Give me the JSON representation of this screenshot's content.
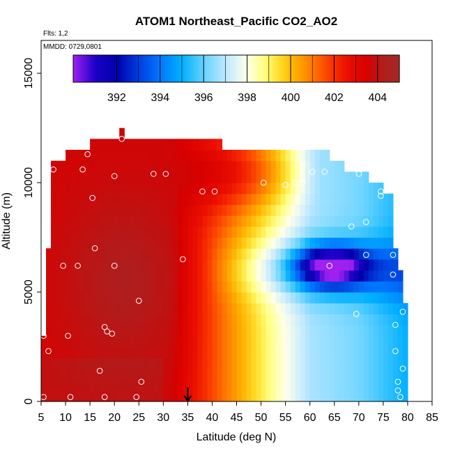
{
  "chart_data": {
    "type": "heatmap",
    "title": "ATOM1 Northeast_Pacific CO2_AO2",
    "notes": {
      "flights": "Flts: 1,2",
      "dates": "MMDD: 0729,0801"
    },
    "xlabel": "Latitude (deg N)",
    "ylabel": "Altitude (m)",
    "xlim": [
      5,
      85
    ],
    "ylim": [
      0,
      16500
    ],
    "x_ticks": [
      5,
      10,
      15,
      20,
      25,
      30,
      35,
      40,
      45,
      50,
      55,
      60,
      65,
      70,
      75,
      80,
      85
    ],
    "y_ticks": [
      0,
      5000,
      10000,
      15000
    ],
    "colorbar": {
      "range": [
        390,
        405
      ],
      "ticks": [
        392,
        394,
        396,
        398,
        400,
        402,
        404
      ],
      "placement": "top"
    },
    "marker": {
      "x": 35,
      "y": 0,
      "shape": "down-arrow"
    },
    "cell_width_deg": 1,
    "cell_height_m": 500,
    "columns": [
      {
        "x0": 5,
        "x1": 6,
        "top": 3000
      },
      {
        "x0": 6,
        "x1": 7,
        "top": 7000
      },
      {
        "x0": 7,
        "x1": 10,
        "top": 11000
      },
      {
        "x0": 10,
        "x1": 15,
        "top": 11500
      },
      {
        "x0": 15,
        "x1": 21,
        "top": 12000
      },
      {
        "x0": 21,
        "x1": 22,
        "top": 12500
      },
      {
        "x0": 22,
        "x1": 42,
        "top": 12000
      },
      {
        "x0": 42,
        "x1": 62,
        "top": 11500
      },
      {
        "x0": 62,
        "x1": 64,
        "top": 11500
      },
      {
        "x0": 64,
        "x1": 67,
        "top": 11000
      },
      {
        "x0": 67,
        "x1": 70,
        "top": 10500
      },
      {
        "x0": 70,
        "x1": 72,
        "top": 10500
      },
      {
        "x0": 72,
        "x1": 75,
        "top": 10000
      },
      {
        "x0": 75,
        "x1": 77,
        "top": 9500
      },
      {
        "x0": 77,
        "x1": 78,
        "top": 7000
      },
      {
        "x0": 78,
        "x1": 79,
        "top": 6000
      },
      {
        "x0": 79,
        "x1": 80,
        "top": 4500
      }
    ],
    "field_model": {
      "description_free": true,
      "south_value": 403.6,
      "core_value": 404.3,
      "core_center": [
        22,
        5500
      ],
      "blue_core_value": 390.5,
      "blue_core_center": [
        64.5,
        6200
      ]
    },
    "samples": [
      [
        5.5,
        200
      ],
      [
        5.5,
        3000
      ],
      [
        6.5,
        2300
      ],
      [
        7.5,
        10600
      ],
      [
        8.5,
        11200
      ],
      [
        9.5,
        6200
      ],
      [
        10.5,
        3000
      ],
      [
        11,
        200
      ],
      [
        12.5,
        6200
      ],
      [
        13.5,
        10600
      ],
      [
        14.5,
        11300
      ],
      [
        15.5,
        9300
      ],
      [
        16,
        7000
      ],
      [
        17,
        1400
      ],
      [
        18,
        3400
      ],
      [
        18.5,
        3200
      ],
      [
        18,
        200
      ],
      [
        19.5,
        3100
      ],
      [
        20,
        10300
      ],
      [
        20,
        6200
      ],
      [
        21.5,
        12000
      ],
      [
        24.5,
        200
      ],
      [
        25,
        4600
      ],
      [
        25.5,
        900
      ],
      [
        28,
        10400
      ],
      [
        30.5,
        10400
      ],
      [
        34,
        6500
      ],
      [
        38,
        9600
      ],
      [
        40.5,
        9600
      ],
      [
        50.5,
        10000
      ],
      [
        55,
        9900
      ],
      [
        57,
        10000
      ],
      [
        58.5,
        10000
      ],
      [
        60.5,
        10500
      ],
      [
        63,
        10500
      ],
      [
        64,
        6200
      ],
      [
        68.5,
        8000
      ],
      [
        69.5,
        4000
      ],
      [
        70,
        10400
      ],
      [
        71.5,
        8200
      ],
      [
        71.5,
        6700
      ],
      [
        74.5,
        9600
      ],
      [
        74.5,
        9400
      ],
      [
        77,
        6700
      ],
      [
        77,
        5800
      ],
      [
        77.5,
        2300
      ],
      [
        77.5,
        3500
      ],
      [
        78,
        900
      ],
      [
        78,
        500
      ],
      [
        78.5,
        200
      ],
      [
        79,
        1500
      ],
      [
        79,
        4100
      ]
    ]
  }
}
